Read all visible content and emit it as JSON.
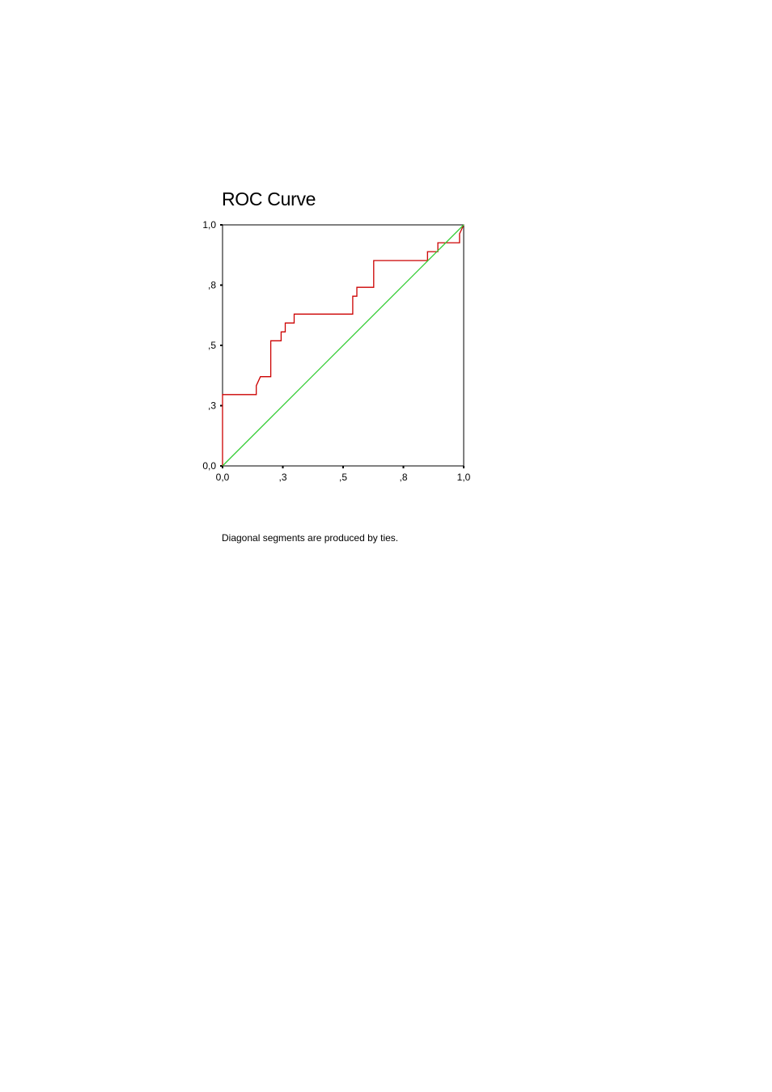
{
  "chart_data": {
    "type": "line",
    "title": "ROC Curve",
    "xlabel": "",
    "ylabel": "",
    "xlim": [
      0,
      1
    ],
    "ylim": [
      0,
      1
    ],
    "grid": false,
    "x_ticks": [
      {
        "value": 0.0,
        "label": "0,0"
      },
      {
        "value": 0.25,
        "label": ",3"
      },
      {
        "value": 0.5,
        "label": ",5"
      },
      {
        "value": 0.75,
        "label": ",8"
      },
      {
        "value": 1.0,
        "label": "1,0"
      }
    ],
    "y_ticks": [
      {
        "value": 0.0,
        "label": "0,0"
      },
      {
        "value": 0.25,
        "label": ",3"
      },
      {
        "value": 0.5,
        "label": ",5"
      },
      {
        "value": 0.75,
        "label": ",8"
      },
      {
        "value": 1.0,
        "label": "1,0"
      }
    ],
    "series": [
      {
        "color": "#cc0000",
        "points": [
          [
            0.0,
            0.0
          ],
          [
            0.0,
            0.296
          ],
          [
            0.14,
            0.296
          ],
          [
            0.14,
            0.333
          ],
          [
            0.157,
            0.37
          ],
          [
            0.2,
            0.37
          ],
          [
            0.2,
            0.519
          ],
          [
            0.243,
            0.519
          ],
          [
            0.243,
            0.556
          ],
          [
            0.26,
            0.556
          ],
          [
            0.26,
            0.593
          ],
          [
            0.297,
            0.593
          ],
          [
            0.297,
            0.63
          ],
          [
            0.54,
            0.63
          ],
          [
            0.54,
            0.704
          ],
          [
            0.557,
            0.704
          ],
          [
            0.557,
            0.741
          ],
          [
            0.627,
            0.741
          ],
          [
            0.627,
            0.852
          ],
          [
            0.85,
            0.852
          ],
          [
            0.85,
            0.889
          ],
          [
            0.893,
            0.889
          ],
          [
            0.893,
            0.926
          ],
          [
            0.983,
            0.926
          ],
          [
            0.983,
            0.963
          ],
          [
            1.0,
            1.0
          ]
        ]
      },
      {
        "color": "#33cc33",
        "points": [
          [
            0.0,
            0.0
          ],
          [
            1.0,
            1.0
          ]
        ]
      }
    ],
    "footnote": "Diagonal segments are produced by ties."
  }
}
